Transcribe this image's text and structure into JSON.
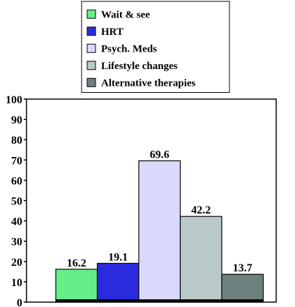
{
  "chart_data": {
    "type": "bar",
    "title": "",
    "xlabel": "",
    "ylabel": "",
    "ylim": [
      0,
      100
    ],
    "yticks": [
      "0",
      "10",
      "20",
      "30",
      "40",
      "50",
      "60",
      "70",
      "80",
      "90",
      "100"
    ],
    "grid": false,
    "legend_position": "top",
    "series": [
      {
        "name": "Wait & see",
        "value": 16.2,
        "label": "16.2",
        "color": "#66ee88"
      },
      {
        "name": "HRT",
        "value": 19.1,
        "label": "19.1",
        "color": "#2b2bdd"
      },
      {
        "name": "Psych. Meds",
        "value": 69.6,
        "label": "69.6",
        "color": "#d9d9fb"
      },
      {
        "name": "Lifestyle changes",
        "value": 42.2,
        "label": "42.2",
        "color": "#b9c8c8"
      },
      {
        "name": "Alternative therapies",
        "value": 13.7,
        "label": "13.7",
        "color": "#6f8080"
      }
    ]
  }
}
